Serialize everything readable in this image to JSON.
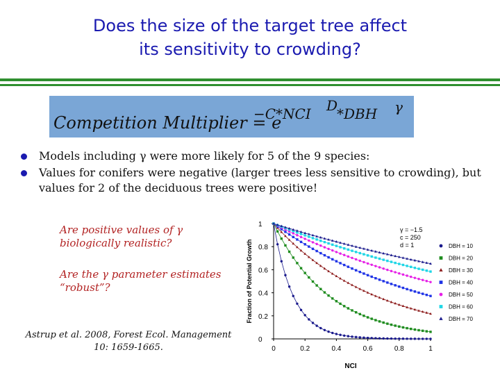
{
  "title": {
    "line1": "Does the size of the target tree affect",
    "line2": "its sensitivity to crowding?"
  },
  "formula": {
    "lhs": "Competition Multiplier = e",
    "exponent": "−C*NCI",
    "d_superscript": "D",
    "dbh": "*DBH",
    "gamma_superscript": "γ"
  },
  "bullets": [
    "Models including γ  were more likely for 5 of the 9 species:",
    "Values for conifers were negative (larger trees less sensitive to crowding), but values for 2 of the deciduous trees were positive!"
  ],
  "questions": [
    "Are positive values of γ biologically realistic?",
    "Are the γ parameter estimates “robust”?"
  ],
  "citation": {
    "line1": "Astrup et al. 2008, Forest Ecol. Management",
    "line2": "10: 1659-1665."
  },
  "colors": {
    "title": "#1a1ab0",
    "rules": "#2f8f2f",
    "formula_bg": "#7aa6d6",
    "questions": "#b22222"
  },
  "chart_data": {
    "type": "line",
    "xlabel": "NCI",
    "ylabel": "Fraction of Potential Growth",
    "xlim": [
      0,
      1
    ],
    "ylim": [
      0,
      1
    ],
    "xticks": [
      "0",
      "0.2",
      "0.4",
      "0.6",
      "0.8",
      "1"
    ],
    "yticks": [
      "0",
      "0.2",
      "0.4",
      "0.6",
      "0.8",
      "1"
    ],
    "grid": false,
    "legend_position": "right",
    "params_annotation": [
      "γ = −1.5",
      "c = 250",
      "d = 1"
    ],
    "params": {
      "gamma": -1.5,
      "c": 250,
      "d": 1
    },
    "series": [
      {
        "name": "DBH = 10",
        "dbh": 10,
        "color": "#1a1a8c",
        "marker": "circle"
      },
      {
        "name": "DBH = 20",
        "dbh": 20,
        "color": "#1f8c1f",
        "marker": "square"
      },
      {
        "name": "DBH = 30",
        "dbh": 30,
        "color": "#8c1a1a",
        "marker": "triangle"
      },
      {
        "name": "DBH = 40",
        "dbh": 40,
        "color": "#1f33e6",
        "marker": "square"
      },
      {
        "name": "DBH = 50",
        "dbh": 50,
        "color": "#e61fe6",
        "marker": "circle"
      },
      {
        "name": "DBH = 60",
        "dbh": 60,
        "color": "#1fd6e6",
        "marker": "square"
      },
      {
        "name": "DBH = 70",
        "dbh": 70,
        "color": "#1a1a8c",
        "marker": "triangle"
      }
    ]
  }
}
